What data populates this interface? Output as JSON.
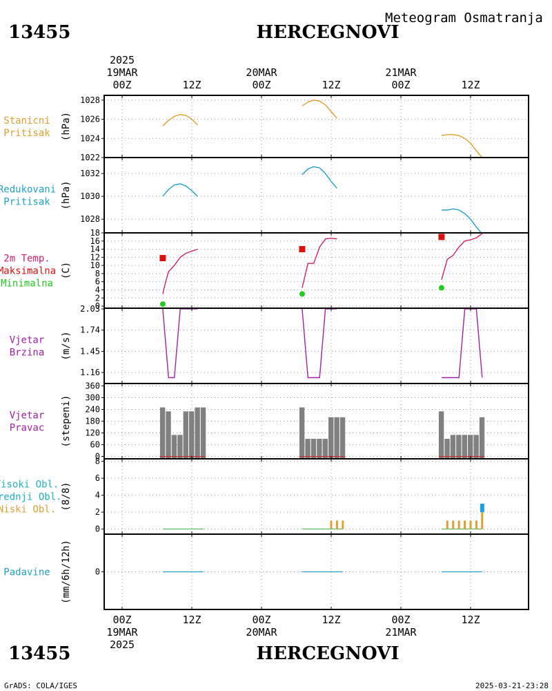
{
  "header": {
    "station_id": "13455",
    "station_name": "HERCEGNOVI",
    "product": "Meteogram Osmatranja"
  },
  "footer": {
    "station_id": "13455",
    "station_name": "HERCEGNOVI",
    "credit": "GrADS: COLA/IGES",
    "timestamp": "2025-03-21-23:28"
  },
  "time_axis": {
    "year": "2025",
    "days": [
      "19MAR",
      "20MAR",
      "21MAR"
    ],
    "top_hour_labels": [
      "00Z",
      "12Z",
      "00Z",
      "12Z",
      "00Z",
      "12Z"
    ],
    "bottom_hour_labels": [
      "00Z",
      "12Z",
      "00Z",
      "12Z",
      "00Z",
      "12Z"
    ]
  },
  "chart_data": [
    {
      "type": "line",
      "panel": "station-pressure",
      "label_lines": [
        "Stanicni",
        "Pritisak"
      ],
      "label_colors": [
        "#e0a030",
        "#e0a030"
      ],
      "ylabel": "(hPa)",
      "ylim": [
        1022,
        1028.5
      ],
      "yticks": [
        1022,
        1024,
        1026,
        1028
      ],
      "ytick_labels": [
        "1022",
        "1024",
        "1026",
        "1028"
      ],
      "color": "#e0a030",
      "segments": [
        {
          "x": [
            7,
            8,
            9,
            10,
            11,
            12,
            13
          ],
          "y": [
            1025.3,
            1025.9,
            1026.3,
            1026.5,
            1026.4,
            1026.0,
            1025.4
          ]
        },
        {
          "x": [
            31,
            32,
            33,
            34,
            35,
            36,
            37
          ],
          "y": [
            1027.4,
            1027.8,
            1028.0,
            1027.9,
            1027.5,
            1026.8,
            1026.1
          ]
        },
        {
          "x": [
            55,
            56,
            57,
            58,
            59,
            60,
            61,
            62
          ],
          "y": [
            1024.3,
            1024.4,
            1024.4,
            1024.3,
            1024.0,
            1023.5,
            1022.7,
            1022.0
          ]
        }
      ]
    },
    {
      "type": "line",
      "panel": "reduced-pressure",
      "label_lines": [
        "Redukovani",
        "Pritisak"
      ],
      "label_colors": [
        "#20a0c8",
        "#20a0c8"
      ],
      "ylabel": "(hPa)",
      "ylim": [
        1026.8,
        1033.4
      ],
      "yticks": [
        1028,
        1030,
        1032
      ],
      "ytick_labels": [
        "1028",
        "1030",
        "1032"
      ],
      "color": "#20a0c8",
      "segments": [
        {
          "x": [
            7,
            8,
            9,
            10,
            11,
            12,
            13
          ],
          "y": [
            1030.0,
            1030.6,
            1031.0,
            1031.1,
            1030.9,
            1030.5,
            1030.0
          ]
        },
        {
          "x": [
            31,
            32,
            33,
            34,
            35,
            36,
            37
          ],
          "y": [
            1031.9,
            1032.4,
            1032.6,
            1032.5,
            1032.0,
            1031.3,
            1030.7
          ]
        },
        {
          "x": [
            55,
            56,
            57,
            58,
            59,
            60,
            61,
            62
          ],
          "y": [
            1028.8,
            1028.8,
            1028.9,
            1028.8,
            1028.5,
            1028.0,
            1027.3,
            1026.7
          ]
        }
      ]
    },
    {
      "type": "line",
      "panel": "temperature",
      "label_lines": [
        "2m Temp.",
        "Maksimalna",
        "Minimalna"
      ],
      "label_colors": [
        "#d0206a",
        "#dd1010",
        "#20cc20"
      ],
      "ylabel": "(C)",
      "ylim": [
        -0.5,
        18
      ],
      "yticks": [
        0,
        2,
        4,
        6,
        8,
        10,
        12,
        14,
        16,
        18
      ],
      "ytick_labels": [
        "0",
        "2",
        "4",
        "6",
        "8",
        "10",
        "12",
        "14",
        "16",
        "18"
      ],
      "color": "#d0206a",
      "segments": [
        {
          "x": [
            7,
            7.5,
            8,
            9,
            10,
            11,
            12,
            13
          ],
          "y": [
            3.0,
            6.0,
            8.5,
            10.0,
            12.0,
            13.0,
            13.5,
            14.0
          ]
        },
        {
          "x": [
            31,
            31.5,
            32,
            33,
            34,
            35,
            36,
            37
          ],
          "y": [
            4.5,
            7.5,
            10.5,
            10.5,
            14.5,
            16.5,
            16.7,
            16.5
          ]
        },
        {
          "x": [
            55,
            55.5,
            56,
            57,
            58,
            59,
            60,
            61,
            62
          ],
          "y": [
            6.5,
            9.0,
            11.5,
            12.5,
            14.5,
            16.0,
            16.3,
            16.8,
            17.8
          ]
        }
      ],
      "maxima": {
        "x": [
          7,
          31,
          55
        ],
        "y": [
          11.8,
          14.0,
          17.0
        ],
        "color": "#dd1010"
      },
      "minima": {
        "x": [
          7,
          31,
          55
        ],
        "y": [
          0.5,
          3.0,
          4.5
        ],
        "color": "#20cc20"
      }
    },
    {
      "type": "line",
      "panel": "wind-speed",
      "label_lines": [
        "Vjetar",
        "Brzina"
      ],
      "label_colors": [
        "#a020a0",
        "#a020a0"
      ],
      "ylabel": "(m/s)",
      "ylim": [
        1.01,
        2.04
      ],
      "yticks": [
        1.16,
        1.45,
        1.74,
        2.03
      ],
      "ytick_labels": [
        "1.16",
        "1.45",
        "1.74",
        "2.03"
      ],
      "color": "#a020a0",
      "segments": [
        {
          "x": [
            7,
            8,
            9,
            10,
            11,
            12,
            13
          ],
          "y": [
            2.03,
            1.09,
            1.09,
            2.03,
            2.03,
            2.03,
            2.03
          ]
        },
        {
          "x": [
            31,
            32,
            33,
            34,
            35,
            36,
            37
          ],
          "y": [
            2.03,
            1.09,
            1.09,
            1.09,
            2.03,
            2.03,
            2.03
          ]
        },
        {
          "x": [
            55,
            56,
            57,
            58,
            59,
            60,
            61,
            62
          ],
          "y": [
            1.09,
            1.09,
            1.09,
            1.09,
            2.03,
            2.03,
            2.03,
            1.09
          ]
        }
      ]
    },
    {
      "type": "bar",
      "panel": "wind-direction",
      "label_lines": [
        "Vjetar",
        "Pravac"
      ],
      "label_colors": [
        "#a020a0",
        "#a020a0"
      ],
      "ylabel": "(stepeni)",
      "ylim": [
        -12,
        372
      ],
      "yticks": [
        0,
        60,
        120,
        180,
        240,
        300,
        360
      ],
      "ytick_labels": [
        "0",
        "60",
        "120",
        "180",
        "240",
        "300",
        "360"
      ],
      "color": "#808080",
      "segments": [
        {
          "x": [
            7,
            8,
            9,
            10,
            11,
            12,
            13,
            14
          ],
          "y": [
            250,
            230,
            110,
            110,
            230,
            230,
            250,
            250
          ]
        },
        {
          "x": [
            31,
            32,
            33,
            34,
            35,
            36,
            37,
            38
          ],
          "y": [
            250,
            90,
            90,
            90,
            90,
            200,
            200,
            200
          ]
        },
        {
          "x": [
            55,
            56,
            57,
            58,
            59,
            60,
            61,
            62
          ],
          "y": [
            230,
            90,
            110,
            110,
            110,
            110,
            110,
            200
          ]
        }
      ]
    },
    {
      "type": "bar",
      "panel": "cloud-cover",
      "label_lines": [
        "Visoki Obl.",
        "Srednji Obl.",
        "Niski Obl."
      ],
      "label_colors": [
        "#20b0c0",
        "#20b0c0",
        "#e0a030"
      ],
      "ylabel": "(8/8)",
      "ylim": [
        -0.6,
        8.3
      ],
      "yticks": [
        0,
        2,
        4,
        6,
        8
      ],
      "ytick_labels": [
        "0",
        "2",
        "4",
        "6",
        "8"
      ],
      "series": [
        {
          "name": "Niski Obl.",
          "color": "#e0a030",
          "x": [
            36,
            37,
            38,
            56,
            57,
            58,
            59,
            60,
            61,
            62
          ],
          "values": [
            1,
            1,
            1,
            1,
            1,
            1,
            1,
            1,
            1,
            2
          ]
        },
        {
          "name": "Visoki Obl.",
          "color": "#20a0e0",
          "x": [
            62
          ],
          "values": [
            1
          ]
        }
      ]
    },
    {
      "type": "bar",
      "panel": "precipitation",
      "label_lines": [
        "Padavine"
      ],
      "label_colors": [
        "#20a0c8"
      ],
      "ylabel": "(mm/6h/12h)",
      "ylim": [
        -4,
        4
      ],
      "yticks": [
        0
      ],
      "ytick_labels": [
        "0"
      ],
      "color": "#20a0c8",
      "segments": [
        {
          "x": [
            7,
            14
          ],
          "y": [
            0,
            0
          ]
        },
        {
          "x": [
            31,
            38
          ],
          "y": [
            0,
            0
          ]
        },
        {
          "x": [
            55,
            62
          ],
          "y": [
            0,
            0
          ]
        }
      ]
    }
  ]
}
